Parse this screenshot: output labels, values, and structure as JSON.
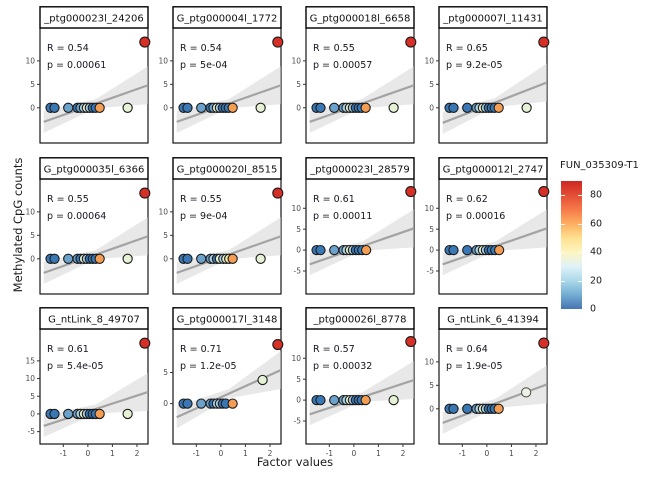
{
  "chart_data": {
    "type": "scatter",
    "facet_grid": {
      "rows": 3,
      "cols": 4
    },
    "xlabel": "Factor values",
    "ylabel": "Methylated CpG counts",
    "x_ticks": [
      -1,
      0,
      1,
      2
    ],
    "xlim": [
      -1.95,
      2.45
    ],
    "grid": false,
    "legend": {
      "title": "FUN_035309-T1",
      "ticks": [
        80,
        60,
        40,
        20,
        0
      ],
      "range": [
        0,
        90
      ],
      "position": "right",
      "colors_top_to_bottom": [
        "#cf2722",
        "#e34e35",
        "#f67a49",
        "#fdae61",
        "#fee090",
        "#fdf5c0",
        "#e0f3f8",
        "#abd9e9",
        "#74add1",
        "#4575b4"
      ]
    },
    "palette": {
      "b1": "#3a78b5",
      "b2": "#6aa2cc",
      "b3": "#a9cfe0",
      "p1": "#e6f0cf",
      "y1": "#efeaa9",
      "o1": "#f59e53",
      "p2": "#e6f2d5",
      "pg": "#edf2e6",
      "red": "#d62f26"
    },
    "point_stroke": "#1b1b1b",
    "gray_stroke": "#555555",
    "line_color": "#a3a3a3",
    "ribbon_color": "#d2d2d2",
    "panels": [
      {
        "title": "_ptg000023l_24206",
        "r": "R = 0.54",
        "p": "p = 0.00061",
        "y_ticks": [
          10,
          5,
          0
        ],
        "ylim": [
          -7.5,
          17
        ],
        "red_point": [
          2.32,
          14
        ],
        "line": [
          [
            -1.8,
            -3.0
          ],
          [
            2.45,
            4.8
          ]
        ],
        "points": [
          [
            -1.52,
            0,
            "b1"
          ],
          [
            -1.36,
            0,
            "b1"
          ],
          [
            -0.8,
            0,
            "b2"
          ],
          [
            -0.42,
            0,
            "b1"
          ],
          [
            -0.3,
            0,
            "b2"
          ],
          [
            -0.16,
            0,
            "b3"
          ],
          [
            -0.04,
            0,
            "p1"
          ],
          [
            0.08,
            0,
            "b3"
          ],
          [
            0.2,
            0,
            "b1"
          ],
          [
            0.32,
            0,
            "b1"
          ],
          [
            0.48,
            0,
            "o1"
          ],
          [
            1.62,
            0,
            "p2"
          ]
        ]
      },
      {
        "title": "G_ptg000004l_1772",
        "r": "R = 0.54",
        "p": "p = 5e-04",
        "y_ticks": [
          10,
          5,
          0
        ],
        "ylim": [
          -7.5,
          17
        ],
        "red_point": [
          2.32,
          14
        ],
        "line": [
          [
            -1.8,
            -3.0
          ],
          [
            2.45,
            4.8
          ]
        ],
        "points": [
          [
            -1.52,
            0,
            "b1"
          ],
          [
            -1.36,
            0,
            "b1"
          ],
          [
            -0.8,
            0,
            "b2"
          ],
          [
            -0.42,
            0,
            "b1"
          ],
          [
            -0.3,
            0,
            "b2"
          ],
          [
            -0.16,
            0,
            "p1"
          ],
          [
            -0.04,
            0,
            "b3"
          ],
          [
            0.08,
            0,
            "b1"
          ],
          [
            0.2,
            0,
            "b1"
          ],
          [
            0.32,
            0,
            "b1"
          ],
          [
            0.48,
            0,
            "o1"
          ],
          [
            1.62,
            0,
            "p2"
          ]
        ]
      },
      {
        "title": "G_ptg000018l_6658",
        "r": "R = 0.55",
        "p": "p = 0.00057",
        "y_ticks": [
          10,
          5,
          0
        ],
        "ylim": [
          -7.5,
          17
        ],
        "red_point": [
          2.32,
          14
        ],
        "line": [
          [
            -1.8,
            -3.0
          ],
          [
            2.45,
            4.8
          ]
        ],
        "points": [
          [
            -1.52,
            0,
            "b1"
          ],
          [
            -1.36,
            0,
            "b1"
          ],
          [
            -0.8,
            0,
            "b2"
          ],
          [
            -0.42,
            0,
            "b2"
          ],
          [
            -0.3,
            0,
            "b3"
          ],
          [
            -0.16,
            0,
            "p1"
          ],
          [
            -0.04,
            0,
            "b3"
          ],
          [
            0.08,
            0,
            "b1"
          ],
          [
            0.2,
            0,
            "b1"
          ],
          [
            0.32,
            0,
            "b1"
          ],
          [
            0.48,
            0,
            "o1"
          ],
          [
            1.62,
            0,
            "p2"
          ]
        ]
      },
      {
        "title": "_ptg000007l_11431",
        "r": "R = 0.65",
        "p": "p = 9.2e-05",
        "y_ticks": [
          10,
          5,
          0
        ],
        "ylim": [
          -7.5,
          17
        ],
        "red_point": [
          2.32,
          14
        ],
        "line": [
          [
            -1.8,
            -3.2
          ],
          [
            2.45,
            5.4
          ]
        ],
        "points": [
          [
            -1.52,
            0,
            "b1"
          ],
          [
            -1.36,
            0,
            "b1"
          ],
          [
            -0.8,
            0,
            "b1"
          ],
          [
            -0.42,
            0,
            "b2"
          ],
          [
            -0.3,
            0,
            "b3"
          ],
          [
            -0.16,
            0,
            "p1"
          ],
          [
            -0.04,
            0,
            "b3"
          ],
          [
            0.08,
            0,
            "b1"
          ],
          [
            0.2,
            0,
            "b1"
          ],
          [
            0.32,
            0,
            "b1"
          ],
          [
            0.48,
            0,
            "o1"
          ],
          [
            1.62,
            0,
            "p2"
          ]
        ]
      },
      {
        "title": "G_ptg000035l_6366",
        "r": "R = 0.55",
        "p": "p = 0.00064",
        "y_ticks": [
          10,
          5,
          0
        ],
        "ylim": [
          -7.5,
          17
        ],
        "red_point": [
          2.32,
          14
        ],
        "line": [
          [
            -1.8,
            -3.0
          ],
          [
            2.45,
            4.8
          ]
        ],
        "points": [
          [
            -1.52,
            0,
            "b1"
          ],
          [
            -1.36,
            0,
            "b1"
          ],
          [
            -0.8,
            0,
            "b2"
          ],
          [
            -0.42,
            0,
            "b2"
          ],
          [
            -0.3,
            0,
            "b1"
          ],
          [
            -0.16,
            0,
            "p1"
          ],
          [
            -0.04,
            0,
            "b3"
          ],
          [
            0.08,
            0,
            "b1"
          ],
          [
            0.2,
            0,
            "b1"
          ],
          [
            0.32,
            0,
            "b1"
          ],
          [
            0.48,
            0,
            "o1"
          ],
          [
            1.62,
            0,
            "p2"
          ]
        ]
      },
      {
        "title": "G_ptg000020l_8515",
        "r": "R = 0.55",
        "p": "p = 9e-04",
        "y_ticks": [
          10,
          5,
          0
        ],
        "ylim": [
          -7.5,
          17
        ],
        "red_point": [
          2.32,
          14
        ],
        "line": [
          [
            -1.8,
            -3.0
          ],
          [
            2.45,
            4.8
          ]
        ],
        "points": [
          [
            -1.52,
            0,
            "b1"
          ],
          [
            -1.36,
            0,
            "b1"
          ],
          [
            -0.8,
            0,
            "b2"
          ],
          [
            -0.42,
            0,
            "b2"
          ],
          [
            -0.3,
            0,
            "b3"
          ],
          [
            -0.16,
            0,
            "b1"
          ],
          [
            -0.04,
            0,
            "p1"
          ],
          [
            0.1,
            0,
            "b3"
          ],
          [
            0.22,
            0,
            "p1"
          ],
          [
            0.34,
            0,
            "y1"
          ],
          [
            0.48,
            0,
            "o1"
          ],
          [
            1.62,
            0,
            "p2"
          ]
        ]
      },
      {
        "title": "_ptg000023l_28579",
        "r": "R = 0.61",
        "p": "p = 0.00011",
        "y_ticks": [
          10,
          5,
          0,
          -5
        ],
        "ylim": [
          -10.5,
          17
        ],
        "red_point": [
          2.32,
          14
        ],
        "line": [
          [
            -1.8,
            -3.4
          ],
          [
            2.45,
            5.2
          ]
        ],
        "points": [
          [
            -1.52,
            0,
            "b1"
          ],
          [
            -1.36,
            0,
            "b1"
          ],
          [
            -0.8,
            0,
            "b2"
          ],
          [
            -0.42,
            0,
            "b2"
          ],
          [
            -0.3,
            0,
            "b3"
          ],
          [
            -0.16,
            0,
            "p1"
          ],
          [
            -0.04,
            0,
            "b3"
          ],
          [
            0.08,
            0,
            "b1"
          ],
          [
            0.2,
            0,
            "b1"
          ],
          [
            0.34,
            0,
            "b1"
          ],
          [
            0.5,
            0,
            "o1"
          ]
        ]
      },
      {
        "title": "G_ptg000012l_2747",
        "r": "R = 0.62",
        "p": "p = 0.00016",
        "y_ticks": [
          10,
          5,
          0,
          -5
        ],
        "ylim": [
          -10.5,
          17
        ],
        "red_point": [
          2.32,
          14
        ],
        "line": [
          [
            -1.8,
            -3.4
          ],
          [
            2.45,
            5.2
          ]
        ],
        "points": [
          [
            -1.52,
            0,
            "b1"
          ],
          [
            -1.36,
            0,
            "b1"
          ],
          [
            -0.8,
            0,
            "b1"
          ],
          [
            -0.42,
            0,
            "b2"
          ],
          [
            -0.3,
            0,
            "b3"
          ],
          [
            -0.16,
            0,
            "p1"
          ],
          [
            -0.04,
            0,
            "b3"
          ],
          [
            0.08,
            0,
            "b1"
          ],
          [
            0.2,
            0,
            "b1"
          ],
          [
            0.34,
            0,
            "b1"
          ],
          [
            0.5,
            0,
            "o1"
          ]
        ]
      },
      {
        "title": "G_ntLink_8_49707",
        "r": "R = 0.61",
        "p": "p = 5.4e-05",
        "y_ticks": [
          15,
          10,
          5,
          0,
          -5
        ],
        "ylim": [
          -8.5,
          24
        ],
        "red_point": [
          2.32,
          20
        ],
        "line": [
          [
            -1.8,
            -3.4
          ],
          [
            2.45,
            6.2
          ]
        ],
        "points": [
          [
            -1.52,
            0,
            "b1"
          ],
          [
            -1.36,
            0,
            "b1"
          ],
          [
            -0.8,
            0,
            "b2"
          ],
          [
            -0.42,
            0,
            "b2"
          ],
          [
            -0.3,
            0,
            "b3"
          ],
          [
            -0.16,
            0,
            "p1"
          ],
          [
            -0.04,
            0,
            "b3"
          ],
          [
            0.08,
            0,
            "b1"
          ],
          [
            0.2,
            0,
            "b1"
          ],
          [
            0.32,
            0,
            "b1"
          ],
          [
            0.48,
            0,
            "o1"
          ],
          [
            1.62,
            0,
            "p2"
          ]
        ]
      },
      {
        "title": "G_ptg000017l_3148",
        "r": "R = 0.71",
        "p": "p = 1.2e-05",
        "y_ticks": [
          5,
          0
        ],
        "ylim": [
          -6.5,
          12
        ],
        "red_point": [
          2.32,
          9.5
        ],
        "line": [
          [
            -1.8,
            -2.2
          ],
          [
            2.45,
            5.4
          ]
        ],
        "points": [
          [
            -1.52,
            0,
            "b1"
          ],
          [
            -1.36,
            0,
            "b1"
          ],
          [
            -0.8,
            0,
            "b2"
          ],
          [
            -0.42,
            0,
            "b2"
          ],
          [
            -0.3,
            0,
            "b1"
          ],
          [
            -0.16,
            0,
            "b3"
          ],
          [
            -0.04,
            0,
            "b3"
          ],
          [
            0.08,
            0,
            "b1"
          ],
          [
            0.2,
            0,
            "b1"
          ],
          [
            0.48,
            0,
            "o1"
          ],
          [
            1.7,
            3.8,
            "p2"
          ]
        ]
      },
      {
        "title": "_ptg000026l_8778",
        "r": "R = 0.57",
        "p": "p = 0.00032",
        "y_ticks": [
          10,
          5,
          0,
          -5
        ],
        "ylim": [
          -10.5,
          17
        ],
        "red_point": [
          2.32,
          14
        ],
        "line": [
          [
            -1.8,
            -3.4
          ],
          [
            2.45,
            4.8
          ]
        ],
        "points": [
          [
            -1.52,
            0,
            "b1"
          ],
          [
            -1.36,
            0,
            "b1"
          ],
          [
            -0.8,
            0,
            "b2"
          ],
          [
            -0.42,
            0,
            "b2"
          ],
          [
            -0.3,
            0,
            "b3"
          ],
          [
            -0.16,
            0,
            "p1"
          ],
          [
            -0.04,
            0,
            "b3"
          ],
          [
            0.08,
            0,
            "b1"
          ],
          [
            0.2,
            0,
            "b1"
          ],
          [
            0.32,
            0,
            "b1"
          ],
          [
            0.48,
            0,
            "o1"
          ],
          [
            1.62,
            0,
            "p2"
          ]
        ]
      },
      {
        "title": "G_ntLink_6_41394",
        "r": "R = 0.64",
        "p": "p = 1.9e-05",
        "y_ticks": [
          10,
          5,
          0
        ],
        "ylim": [
          -7.5,
          17
        ],
        "red_point": [
          2.32,
          14
        ],
        "line": [
          [
            -1.8,
            -3.0
          ],
          [
            2.45,
            5.2
          ]
        ],
        "points": [
          [
            -1.52,
            0,
            "b1"
          ],
          [
            -1.36,
            0,
            "b1"
          ],
          [
            -0.8,
            0,
            "b1"
          ],
          [
            -0.42,
            0,
            "b2"
          ],
          [
            -0.3,
            0,
            "b3"
          ],
          [
            -0.16,
            0,
            "p1"
          ],
          [
            -0.04,
            0,
            "b3"
          ],
          [
            0.08,
            0,
            "b1"
          ],
          [
            0.2,
            0,
            "b1"
          ],
          [
            0.32,
            0,
            "b1"
          ],
          [
            0.48,
            0,
            "o1"
          ],
          [
            1.6,
            3.5,
            "pg"
          ]
        ]
      }
    ]
  }
}
